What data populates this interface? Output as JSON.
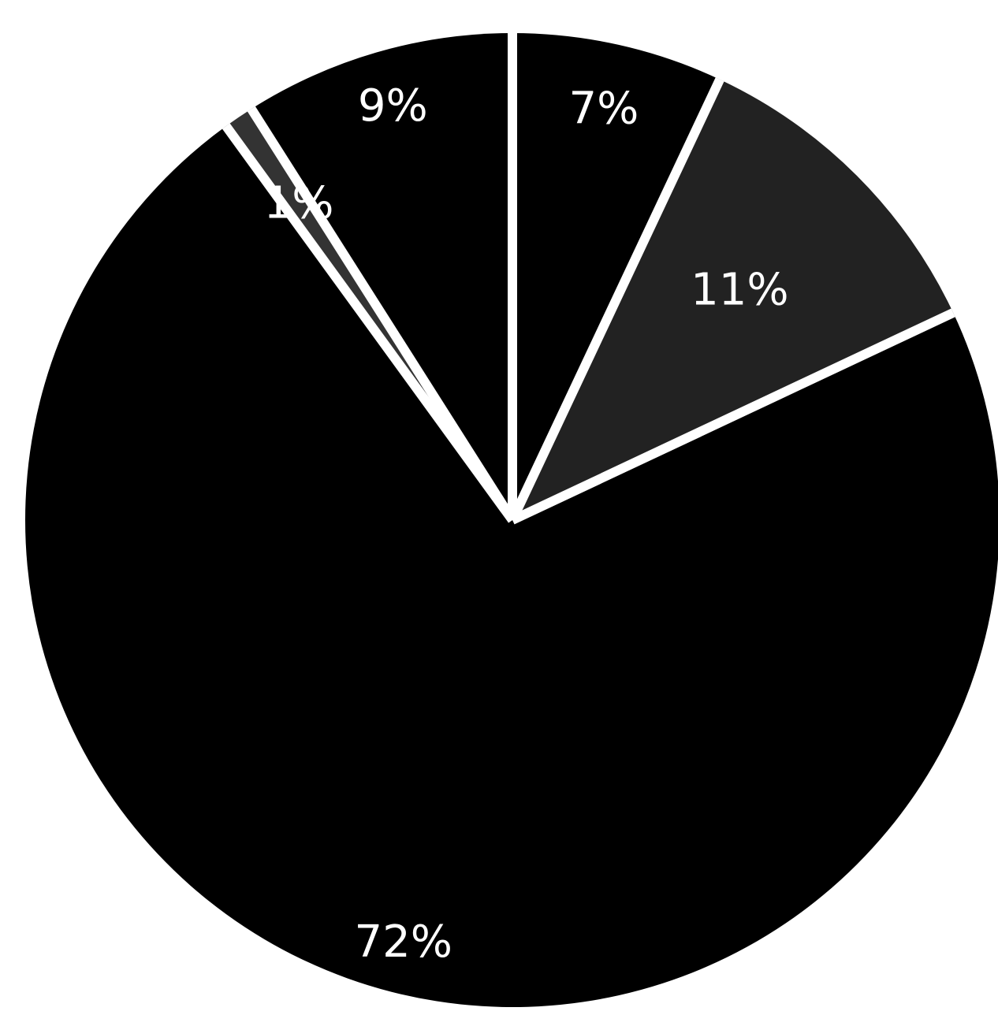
{
  "chart_data": {
    "type": "pie",
    "start_angle_deg": 0,
    "direction": "clockwise",
    "slices": [
      {
        "label": "7%",
        "value": 7,
        "color": "#000000"
      },
      {
        "label": "11%",
        "value": 11,
        "color": "#222222"
      },
      {
        "label": "72%",
        "value": 72,
        "color": "#000000"
      },
      {
        "label": "1%",
        "value": 1,
        "color": "#333333"
      },
      {
        "label": "9%",
        "value": 9,
        "color": "#000000"
      }
    ],
    "separator_color": "#ffffff",
    "label_color": "#ffffff",
    "legend": "none"
  }
}
